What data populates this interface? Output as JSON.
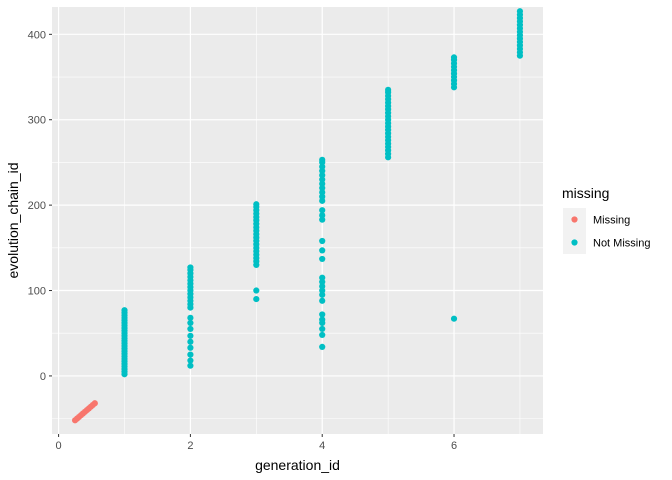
{
  "chart_data": {
    "type": "scatter",
    "title": "",
    "xlabel": "generation_id",
    "ylabel": "evolution_chain_id",
    "xlim": [
      -0.1,
      7.35
    ],
    "ylim": [
      -68,
      432
    ],
    "xticks": [
      0,
      2,
      4,
      6
    ],
    "yticks": [
      0,
      100,
      200,
      300,
      400
    ],
    "x_tick_labels": [
      "0",
      "2",
      "4",
      "6"
    ],
    "y_tick_labels": [
      "0",
      "100",
      "200",
      "300",
      "400"
    ],
    "grid": true,
    "legend": {
      "title": "missing",
      "placement": "right",
      "entries": [
        "Missing",
        "Not Missing"
      ]
    },
    "series": [
      {
        "name": "Missing",
        "color": "#F8766D",
        "points": [
          [
            0.25,
            -52
          ],
          [
            0.28,
            -50
          ],
          [
            0.31,
            -48
          ],
          [
            0.34,
            -46
          ],
          [
            0.37,
            -44
          ],
          [
            0.4,
            -42
          ],
          [
            0.43,
            -40
          ],
          [
            0.46,
            -38
          ],
          [
            0.49,
            -36
          ],
          [
            0.52,
            -34
          ],
          [
            0.55,
            -32
          ]
        ]
      },
      {
        "name": "Not Missing",
        "color": "#00BFC4",
        "points": [
          [
            1,
            2
          ],
          [
            1,
            5
          ],
          [
            1,
            8
          ],
          [
            1,
            11
          ],
          [
            1,
            14
          ],
          [
            1,
            17
          ],
          [
            1,
            20
          ],
          [
            1,
            23
          ],
          [
            1,
            26
          ],
          [
            1,
            29
          ],
          [
            1,
            32
          ],
          [
            1,
            35
          ],
          [
            1,
            38
          ],
          [
            1,
            41
          ],
          [
            1,
            44
          ],
          [
            1,
            47
          ],
          [
            1,
            50
          ],
          [
            1,
            53
          ],
          [
            1,
            56
          ],
          [
            1,
            59
          ],
          [
            1,
            62
          ],
          [
            1,
            65
          ],
          [
            1,
            68
          ],
          [
            1,
            71
          ],
          [
            1,
            74
          ],
          [
            1,
            77
          ],
          [
            2,
            12
          ],
          [
            2,
            18
          ],
          [
            2,
            25
          ],
          [
            2,
            33
          ],
          [
            2,
            40
          ],
          [
            2,
            47
          ],
          [
            2,
            55
          ],
          [
            2,
            62
          ],
          [
            2,
            68
          ],
          [
            2,
            80
          ],
          [
            2,
            84
          ],
          [
            2,
            88
          ],
          [
            2,
            92
          ],
          [
            2,
            96
          ],
          [
            2,
            100
          ],
          [
            2,
            104
          ],
          [
            2,
            108
          ],
          [
            2,
            112
          ],
          [
            2,
            116
          ],
          [
            2,
            120
          ],
          [
            2,
            124
          ],
          [
            2,
            127
          ],
          [
            3,
            90
          ],
          [
            3,
            100
          ],
          [
            3,
            130
          ],
          [
            3,
            134
          ],
          [
            3,
            138
          ],
          [
            3,
            142
          ],
          [
            3,
            146
          ],
          [
            3,
            150
          ],
          [
            3,
            154
          ],
          [
            3,
            158
          ],
          [
            3,
            162
          ],
          [
            3,
            166
          ],
          [
            3,
            170
          ],
          [
            3,
            174
          ],
          [
            3,
            178
          ],
          [
            3,
            182
          ],
          [
            3,
            186
          ],
          [
            3,
            190
          ],
          [
            3,
            194
          ],
          [
            3,
            198
          ],
          [
            3,
            201
          ],
          [
            4,
            34
          ],
          [
            4,
            48
          ],
          [
            4,
            55
          ],
          [
            4,
            62
          ],
          [
            4,
            66
          ],
          [
            4,
            72
          ],
          [
            4,
            88
          ],
          [
            4,
            95
          ],
          [
            4,
            100
          ],
          [
            4,
            105
          ],
          [
            4,
            110
          ],
          [
            4,
            115
          ],
          [
            4,
            137
          ],
          [
            4,
            147
          ],
          [
            4,
            158
          ],
          [
            4,
            183
          ],
          [
            4,
            188
          ],
          [
            4,
            194
          ],
          [
            4,
            205
          ],
          [
            4,
            210
          ],
          [
            4,
            215
          ],
          [
            4,
            220
          ],
          [
            4,
            225
          ],
          [
            4,
            230
          ],
          [
            4,
            235
          ],
          [
            4,
            240
          ],
          [
            4,
            245
          ],
          [
            4,
            250
          ],
          [
            4,
            253
          ],
          [
            5,
            256
          ],
          [
            5,
            260
          ],
          [
            5,
            264
          ],
          [
            5,
            268
          ],
          [
            5,
            272
          ],
          [
            5,
            276
          ],
          [
            5,
            280
          ],
          [
            5,
            284
          ],
          [
            5,
            288
          ],
          [
            5,
            292
          ],
          [
            5,
            296
          ],
          [
            5,
            300
          ],
          [
            5,
            304
          ],
          [
            5,
            308
          ],
          [
            5,
            312
          ],
          [
            5,
            316
          ],
          [
            5,
            320
          ],
          [
            5,
            324
          ],
          [
            5,
            328
          ],
          [
            5,
            332
          ],
          [
            5,
            335
          ],
          [
            6,
            67
          ],
          [
            6,
            338
          ],
          [
            6,
            342
          ],
          [
            6,
            346
          ],
          [
            6,
            350
          ],
          [
            6,
            354
          ],
          [
            6,
            358
          ],
          [
            6,
            362
          ],
          [
            6,
            366
          ],
          [
            6,
            370
          ],
          [
            6,
            373
          ],
          [
            7,
            375
          ],
          [
            7,
            379
          ],
          [
            7,
            383
          ],
          [
            7,
            387
          ],
          [
            7,
            391
          ],
          [
            7,
            395
          ],
          [
            7,
            399
          ],
          [
            7,
            403
          ],
          [
            7,
            407
          ],
          [
            7,
            411
          ],
          [
            7,
            415
          ],
          [
            7,
            419
          ],
          [
            7,
            423
          ],
          [
            7,
            427
          ]
        ]
      }
    ]
  },
  "colors": {
    "panel_background": "#EBEBEB",
    "grid_major": "#FFFFFF",
    "legend_key_background": "#F2F2F2"
  }
}
